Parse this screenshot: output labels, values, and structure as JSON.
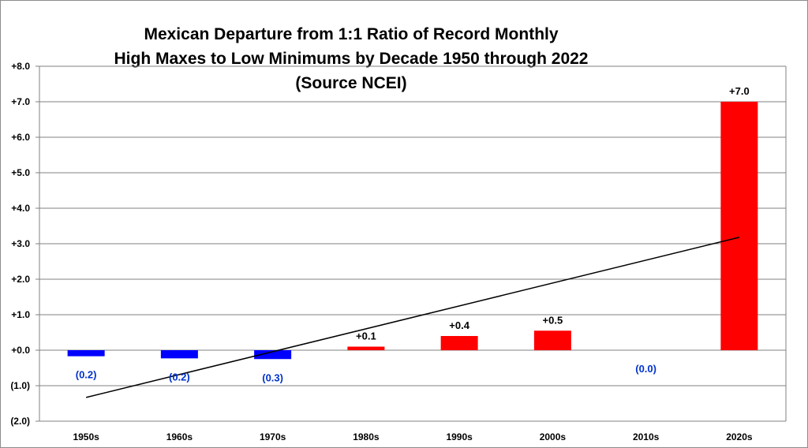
{
  "chart_data": {
    "type": "bar",
    "title_lines": [
      "Mexican Departure from 1:1 Ratio of Record Monthly",
      "High Maxes to Low Minimums by Decade 1950 through 2022",
      "(Source NCEI)"
    ],
    "categories": [
      "1950s",
      "1960s",
      "1970s",
      "1980s",
      "1990s",
      "2000s",
      "2010s",
      "2020s"
    ],
    "values": [
      -0.17,
      -0.23,
      -0.25,
      0.1,
      0.4,
      0.55,
      0.0,
      7.0
    ],
    "value_labels": [
      "(0.2)",
      "(0.2)",
      "(0.3)",
      "+0.1",
      "+0.4",
      "+0.5",
      "(0.0)",
      "+7.0"
    ],
    "ylim": [
      -2.0,
      8.0
    ],
    "yticks": [
      8,
      7,
      6,
      5,
      4,
      3,
      2,
      1,
      0,
      -1,
      -2
    ],
    "ytick_labels": [
      "+8.0",
      "+7.0",
      "+6.0",
      "+5.0",
      "+4.0",
      "+3.0",
      "+2.0",
      "+1.0",
      "+0.0",
      "(1.0)",
      "(2.0)"
    ],
    "trendline": {
      "start": -1.33,
      "end": 3.18
    },
    "grid": true,
    "legend": "none",
    "colors": {
      "positive": "#ff0000",
      "negative": "#0000ff",
      "negative_label": "#0033cc",
      "trend": "#000000",
      "grid": "#808080"
    }
  }
}
